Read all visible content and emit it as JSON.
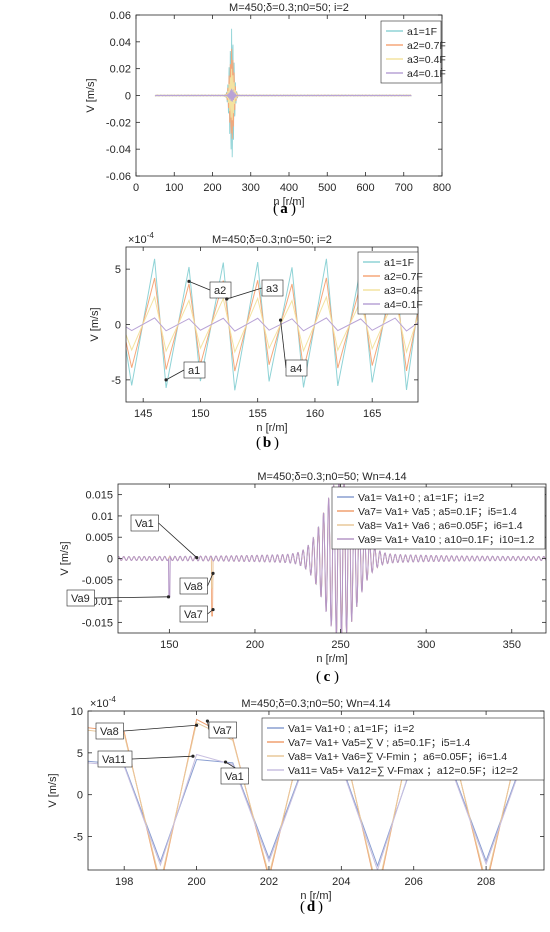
{
  "panels": [
    {
      "title": "M=450;δ=0.3;n0=50; i=2",
      "xlabel": "n [r/m]",
      "ylabel": "V [m/s]",
      "exponent": "",
      "caption": "a",
      "legend": [
        "a1=1F",
        "a2=0.7F",
        "a3=0.4F",
        "a4=0.1F"
      ]
    },
    {
      "title": "M=450;δ=0.3;n0=50; i=2",
      "xlabel": "n [r/m]",
      "ylabel": "V [m/s]",
      "exponent": "×10",
      "exponent_power": "-4",
      "caption": "b",
      "legend": [
        "a1=1F",
        "a2=0.7F",
        "a3=0.4F",
        "a4=0.1F"
      ],
      "annotations": [
        "a2",
        "a3",
        "a1",
        "a4"
      ]
    },
    {
      "title": "M=450;δ=0.3;n0=50; Wn=4.14",
      "xlabel": "n [r/m]",
      "ylabel": "V [m/s]",
      "exponent": "",
      "caption": "c",
      "legend": [
        "Va1= Va1+0 ; a1=1F；i1=2",
        "Va7= Va1+ Va5 ; a5=0.1F；i5=1.4",
        "Va8= Va1+ Va6 ; a6=0.05F；i6=1.4",
        "Va9= Va1+ Va10 ; a10=0.1F；i10=1.2"
      ],
      "annotations": [
        "Va1",
        "Va9",
        "Va8",
        "Va7"
      ]
    },
    {
      "title": "M=450;δ=0.3;n0=50; Wn=4.14",
      "xlabel": "n [r/m]",
      "ylabel": "V [m/s]",
      "exponent": "×10",
      "exponent_power": "-4",
      "caption": "d",
      "legend": [
        "Va1= Va1+0 ; a1=1F；i1=2",
        "Va7= Va1+ Va5=∑   V ; a5=0.1F；i5=1.4",
        "Va8= Va1+ Va6=∑   V-Fmin ；a6=0.05F；i6=1.4",
        "Va11= Va5+ Va12=∑   V-Fmax ；a12=0.5F；i12=2"
      ],
      "annotations": [
        "Va8",
        "Va7",
        "Va11",
        "Va1"
      ]
    }
  ],
  "chart_data": [
    {
      "type": "line",
      "title": "M=450;δ=0.3;n0=50; i=2",
      "xlabel": "n [r/m]",
      "ylabel": "V [m/s]",
      "xlim": [
        0,
        800
      ],
      "ylim": [
        -0.06,
        0.06
      ],
      "xticks": [
        0,
        100,
        200,
        300,
        400,
        500,
        600,
        700,
        800
      ],
      "yticks": [
        -0.06,
        -0.04,
        -0.02,
        0,
        0.02,
        0.04,
        0.06
      ],
      "xrange_data": [
        50,
        720
      ],
      "series": [
        {
          "name": "a1=1F",
          "color": "#8fd3d6",
          "peak": 0.05,
          "trough": -0.044,
          "peak_at": 250
        },
        {
          "name": "a2=0.7F",
          "color": "#f5a77a",
          "peak": 0.035,
          "trough": -0.031,
          "peak_at": 250
        },
        {
          "name": "a3=0.4F",
          "color": "#f3e3a1",
          "peak": 0.02,
          "trough": -0.018,
          "peak_at": 250
        },
        {
          "name": "a4=0.1F",
          "color": "#b8a3d6",
          "peak": 0.005,
          "trough": -0.0045,
          "peak_at": 250
        }
      ],
      "legend_position": "top-right"
    },
    {
      "type": "line",
      "title": "M=450;δ=0.3;n0=50; i=2",
      "xlabel": "n [r/m]",
      "ylabel": "V [m/s]",
      "xlim": [
        143.5,
        169
      ],
      "ylim": [
        -7,
        7
      ],
      "y_multiplier": "1e-4",
      "xticks": [
        145,
        150,
        155,
        160,
        165
      ],
      "yticks": [
        -5,
        0,
        5
      ],
      "peaks_x": [
        146,
        149,
        152,
        155,
        158,
        161,
        164,
        167
      ],
      "troughs_x": [
        144,
        147,
        150,
        153,
        156,
        159,
        162,
        165,
        168
      ],
      "series": [
        {
          "name": "a1=1F",
          "color": "#8fd3d6",
          "amplitude": 5.5
        },
        {
          "name": "a2=0.7F",
          "color": "#f5a77a",
          "amplitude": 3.9
        },
        {
          "name": "a3=0.4F",
          "color": "#f3e3a1",
          "amplitude": 2.3
        },
        {
          "name": "a4=0.1F",
          "color": "#b8a3d6",
          "amplitude": 0.55
        }
      ],
      "legend_position": "top-right"
    },
    {
      "type": "line",
      "title": "M=450;δ=0.3;n0=50; Wn=4.14",
      "xlabel": "n [r/m]",
      "ylabel": "V [m/s]",
      "xlim": [
        120,
        370
      ],
      "ylim": [
        -0.0175,
        0.0175
      ],
      "xticks": [
        150,
        200,
        250,
        300,
        350
      ],
      "yticks": [
        -0.015,
        -0.01,
        -0.005,
        0,
        0.005,
        0.01,
        0.015
      ],
      "resonance_at": 250,
      "resonance_peak": 0.0175,
      "impulses": [
        {
          "series": "Va9",
          "x": 150,
          "value": -0.009
        },
        {
          "series": "Va8",
          "x": 175,
          "value": -0.007
        },
        {
          "series": "Va7",
          "x": 175,
          "value": -0.0135
        }
      ],
      "series": [
        {
          "name": "Va1",
          "color": "#8a9fd1"
        },
        {
          "name": "Va7",
          "color": "#f0a070"
        },
        {
          "name": "Va8",
          "color": "#e8c89a"
        },
        {
          "name": "Va9",
          "color": "#b597c7"
        }
      ],
      "legend_position": "top-right"
    },
    {
      "type": "line",
      "title": "M=450;δ=0.3;n0=50; Wn=4.14",
      "xlabel": "n [r/m]",
      "ylabel": "V [m/s]",
      "xlim": [
        197,
        209.6
      ],
      "ylim": [
        -9,
        10
      ],
      "y_multiplier": "1e-4",
      "xticks": [
        198,
        200,
        202,
        204,
        206,
        208
      ],
      "yticks": [
        -5,
        0,
        5,
        10
      ],
      "series": [
        {
          "name": "Va1",
          "color": "#8a9fd1",
          "x": [
            197,
            198,
            199,
            200,
            201,
            202,
            203,
            204,
            205,
            206,
            207,
            208,
            209
          ],
          "y": [
            4,
            3.6,
            -8,
            4.2,
            3.8,
            -7.6,
            4,
            3.6,
            -8.5,
            4.1,
            3.7,
            -7.9,
            4
          ]
        },
        {
          "name": "Va7",
          "color": "#f0a070",
          "x": [
            197,
            198,
            199,
            200,
            201,
            202,
            203,
            204,
            205,
            206,
            207,
            208,
            209
          ],
          "y": [
            8,
            7.5,
            -11,
            9,
            6.7,
            -10,
            8.2,
            7.3,
            -12,
            8.6,
            7,
            -11,
            8
          ]
        },
        {
          "name": "Va8",
          "color": "#e8c89a",
          "x": [
            197,
            198,
            199,
            200,
            201,
            202,
            203,
            204,
            205,
            206,
            207,
            208,
            209
          ],
          "y": [
            7.7,
            7.2,
            -10.5,
            8.6,
            6.5,
            -9.6,
            7.9,
            7,
            -11.5,
            8.3,
            6.8,
            -10.5,
            7.7
          ]
        },
        {
          "name": "Va11",
          "color": "#c8bfe0",
          "x": [
            197,
            198,
            199,
            200,
            201,
            202,
            203,
            204,
            205,
            206,
            207,
            208,
            209
          ],
          "y": [
            3.8,
            3.4,
            -8.4,
            4.8,
            3.6,
            -8,
            3.8,
            3.4,
            -9,
            4.4,
            3.5,
            -8.3,
            3.8
          ]
        }
      ],
      "legend_position": "top-right"
    }
  ]
}
